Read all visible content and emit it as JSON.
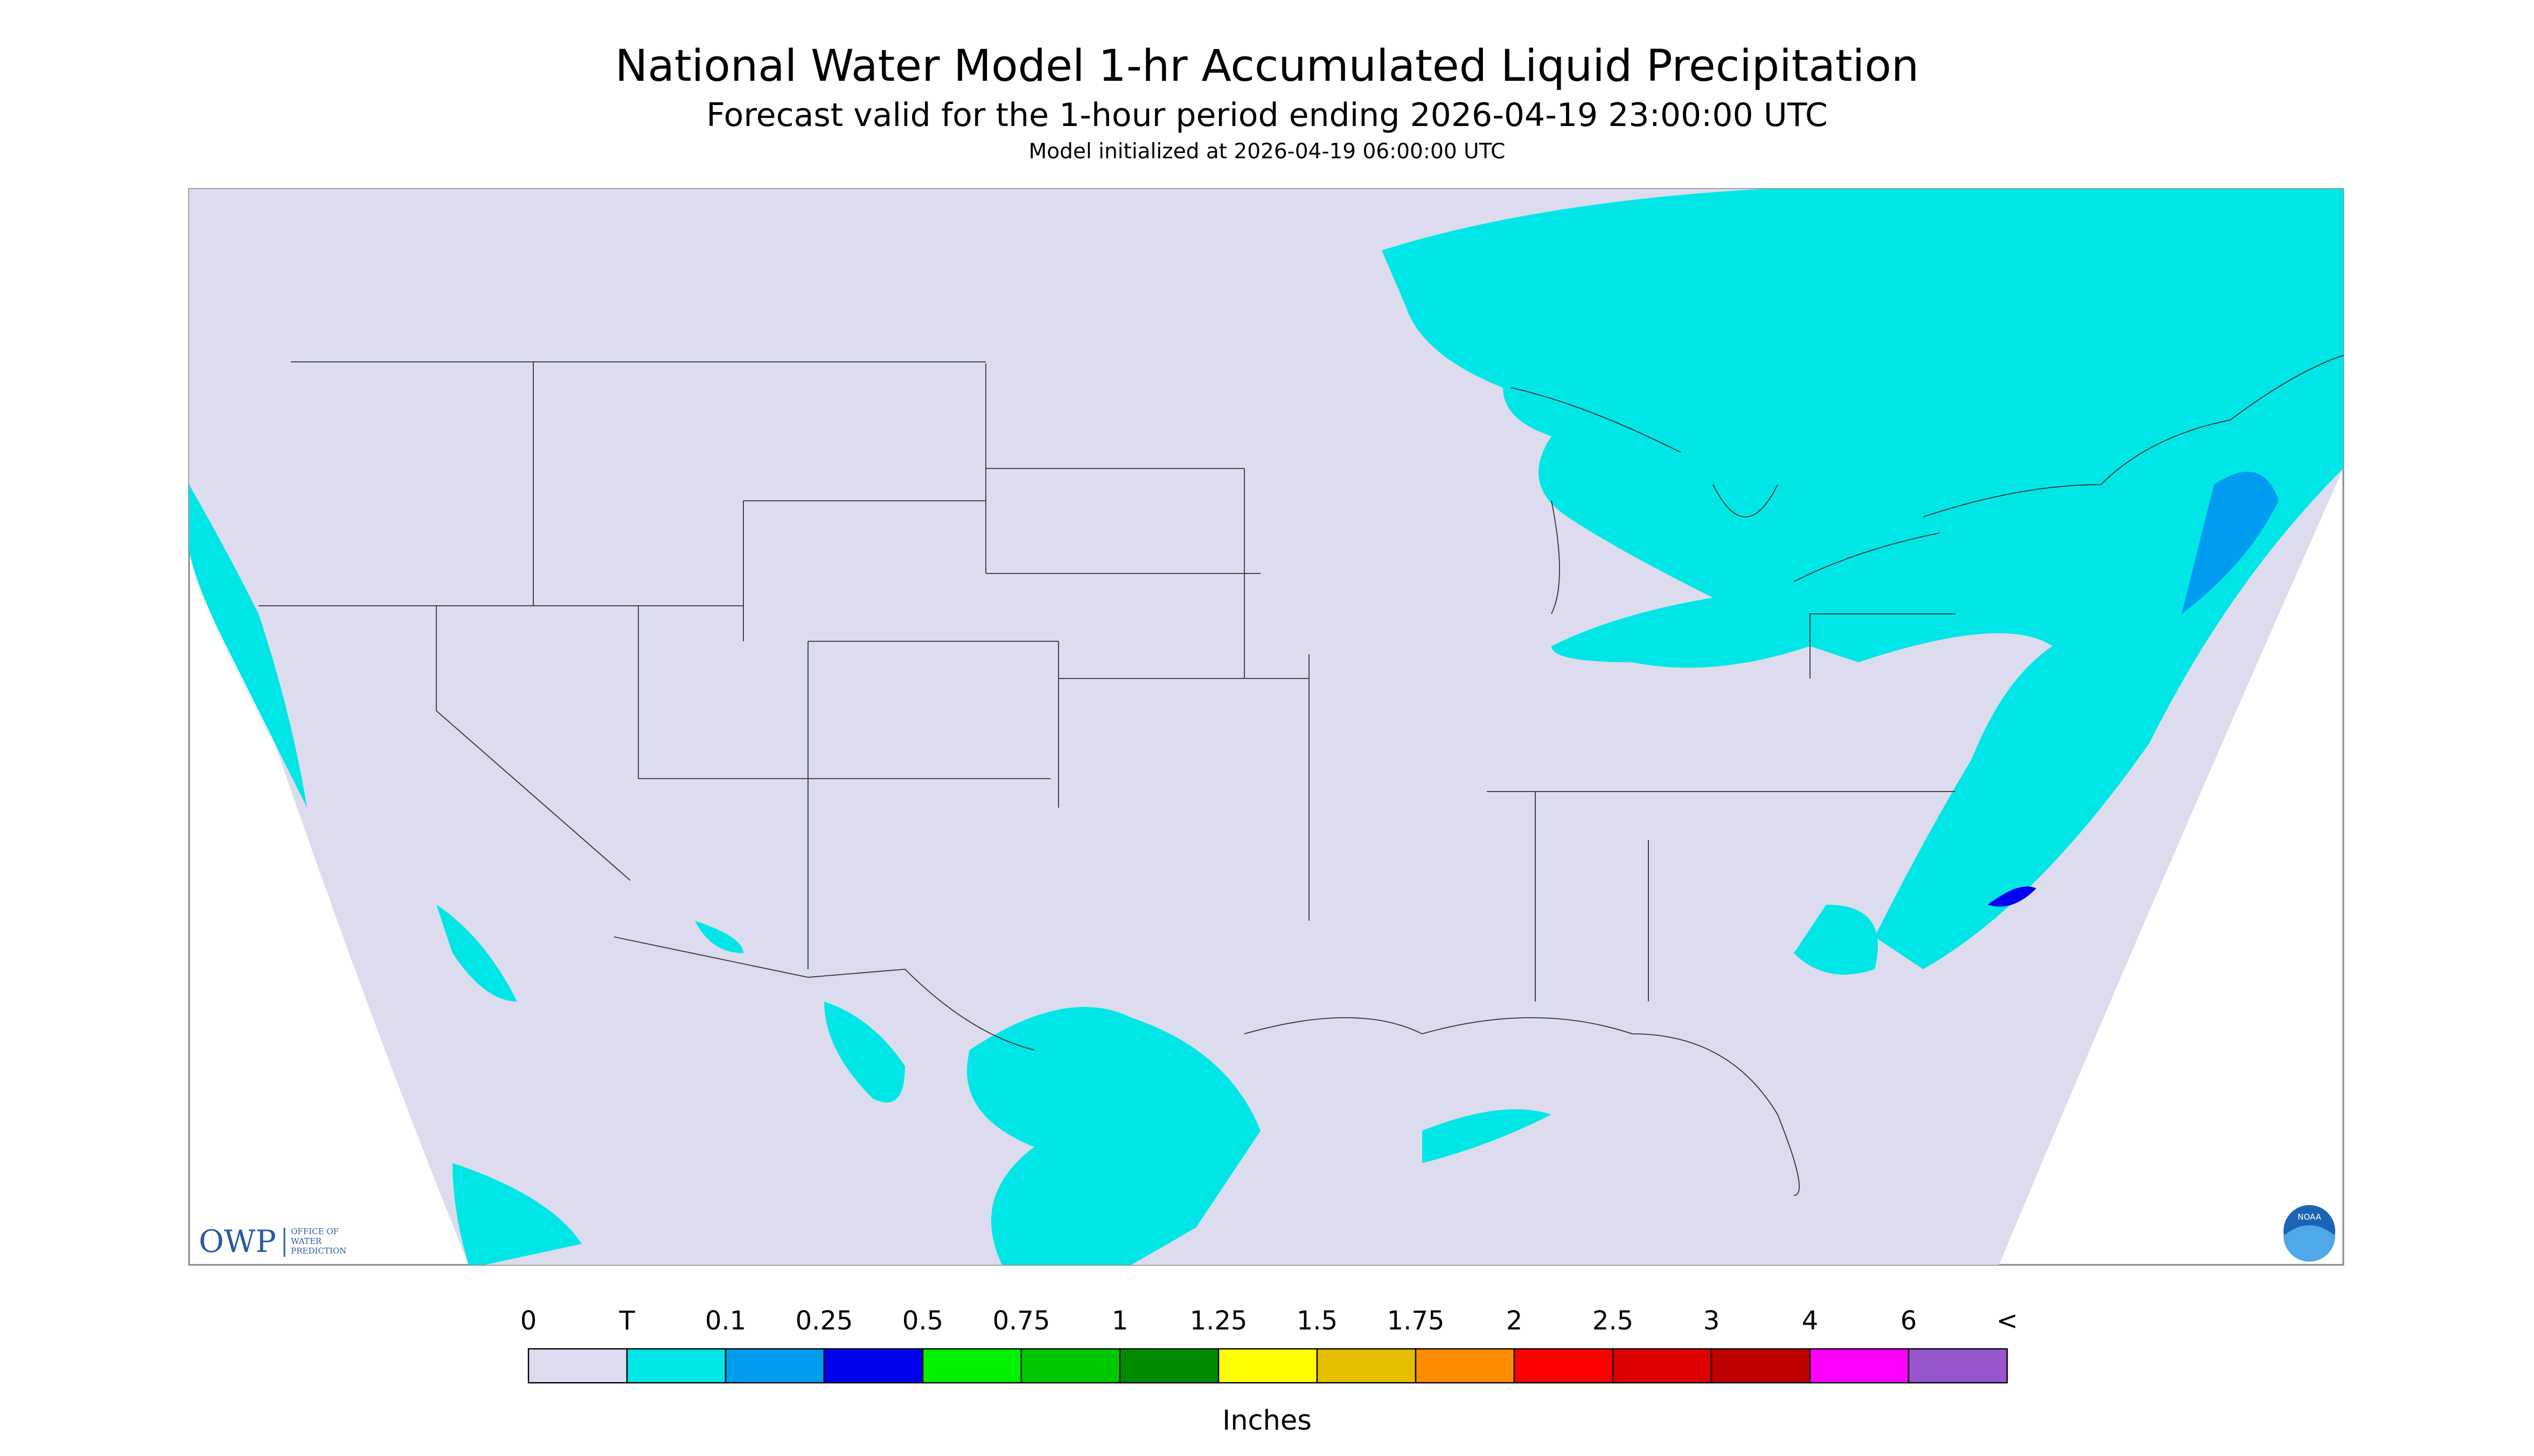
{
  "header": {
    "title": "National Water Model 1-hr Accumulated Liquid Precipitation",
    "subtitle": "Forecast valid for the 1-hour period ending 2026-04-19 23:00:00 UTC",
    "initialized": "Model initialized at 2026-04-19 06:00:00 UTC"
  },
  "logo": {
    "acronym": "OWP",
    "name": [
      "OFFICE OF",
      "WATER",
      "PREDICTION"
    ],
    "agency": "NOAA"
  },
  "legend": {
    "labels": [
      "0",
      "T",
      "0.1",
      "0.25",
      "0.5",
      "0.75",
      "1",
      "1.25",
      "1.5",
      "1.75",
      "2",
      "2.5",
      "3",
      "4",
      "6",
      "<"
    ],
    "colors": [
      "#dcdcee",
      "#00e6e6",
      "#009cf0",
      "#0000f0",
      "#00f000",
      "#00c800",
      "#008c00",
      "#ffff00",
      "#e6be00",
      "#ff8c00",
      "#ff0000",
      "#dc0000",
      "#be0000",
      "#ff00ff",
      "#9955cc"
    ],
    "unit": "Inches"
  }
}
